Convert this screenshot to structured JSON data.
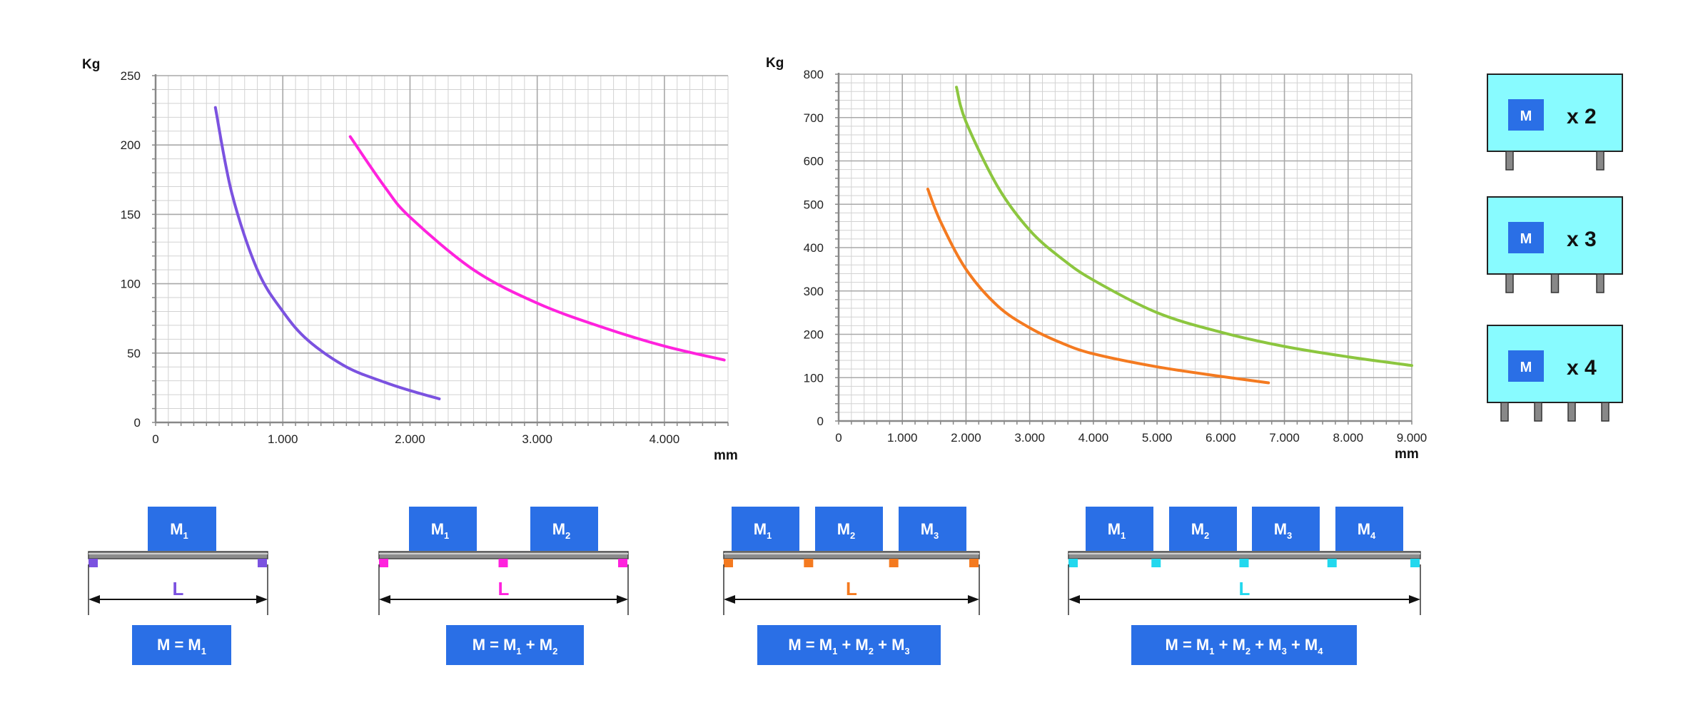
{
  "chart_data": [
    {
      "type": "line",
      "title": "",
      "ylabel": "Kg",
      "xlabel": "mm",
      "xlim": [
        0,
        4500
      ],
      "ylim": [
        0,
        250
      ],
      "x_ticks": [
        0,
        1000,
        2000,
        3000,
        4000
      ],
      "x_tick_labels": [
        "0",
        "1.000",
        "2.000",
        "3.000",
        "4.000"
      ],
      "y_ticks": [
        0,
        50,
        100,
        150,
        200,
        250
      ],
      "y_tick_labels": [
        "0",
        "50",
        "100",
        "150",
        "200",
        "250"
      ],
      "grid": true,
      "series": [
        {
          "color": "#7b52e0",
          "x": [
            470,
            600,
            800,
            1000,
            1200,
            1500,
            1800,
            2000,
            2230
          ],
          "y": [
            227,
            165,
            110,
            80,
            59,
            40,
            29,
            23,
            17
          ]
        },
        {
          "color": "#ff22dd",
          "x": [
            1530,
            1800,
            2000,
            2500,
            3000,
            3500,
            4000,
            4470
          ],
          "y": [
            206,
            170,
            148,
            110,
            86,
            69,
            55,
            45
          ]
        }
      ]
    },
    {
      "type": "line",
      "title": "",
      "ylabel": "Kg",
      "xlabel": "mm",
      "xlim": [
        0,
        9000
      ],
      "ylim": [
        0,
        800
      ],
      "x_ticks": [
        0,
        1000,
        2000,
        3000,
        4000,
        5000,
        6000,
        7000,
        8000,
        9000
      ],
      "x_tick_labels": [
        "0",
        "1.000",
        "2.000",
        "3.000",
        "4.000",
        "5.000",
        "6.000",
        "7.000",
        "8.000",
        "9.000"
      ],
      "y_ticks": [
        0,
        100,
        200,
        300,
        400,
        500,
        600,
        700,
        800
      ],
      "y_tick_labels": [
        "0",
        "100",
        "200",
        "300",
        "400",
        "500",
        "600",
        "700",
        "800"
      ],
      "grid": true,
      "series": [
        {
          "color": "#8cc63f",
          "x": [
            1850,
            2000,
            2500,
            3000,
            3500,
            4000,
            5000,
            6000,
            7000,
            8000,
            9000
          ],
          "y": [
            770,
            690,
            540,
            440,
            375,
            325,
            250,
            205,
            172,
            148,
            128
          ]
        },
        {
          "color": "#f47a20",
          "x": [
            1400,
            1600,
            2000,
            2500,
            3000,
            3500,
            4000,
            5000,
            6000,
            6750
          ],
          "y": [
            535,
            460,
            350,
            265,
            215,
            180,
            155,
            125,
            103,
            88
          ]
        }
      ]
    }
  ],
  "configs": [
    {
      "label": "x 2",
      "box": "M",
      "legs": 2
    },
    {
      "label": "x 3",
      "box": "M",
      "legs": 3
    },
    {
      "label": "x 4",
      "box": "M",
      "legs": 4
    }
  ],
  "diagrams": [
    {
      "color": "#7b52e0",
      "masses": [
        "M",
        "1"
      ],
      "span": "L",
      "formula": [
        [
          "M = M",
          "1"
        ]
      ]
    },
    {
      "color": "#ff22dd",
      "masses": [
        "M",
        "1",
        "M",
        "2"
      ],
      "span": "L",
      "formula": [
        [
          "M = M",
          "1"
        ],
        [
          "+ M",
          "2"
        ]
      ]
    },
    {
      "color": "#f47a20",
      "masses": [
        "M",
        "1",
        "M",
        "2",
        "M",
        "3"
      ],
      "span": "L",
      "formula": [
        [
          "M = M",
          "1"
        ],
        [
          "+ M",
          "2"
        ],
        [
          "+ M",
          "3"
        ]
      ]
    },
    {
      "color": "#22d8ee",
      "masses": [
        "M",
        "1",
        "M",
        "2",
        "M",
        "3",
        "M",
        "4"
      ],
      "span": "L",
      "formula": [
        [
          "M = M",
          "1"
        ],
        [
          "+ M",
          "2"
        ],
        [
          "+ M",
          "3"
        ],
        [
          "+ M",
          "4"
        ]
      ]
    }
  ]
}
